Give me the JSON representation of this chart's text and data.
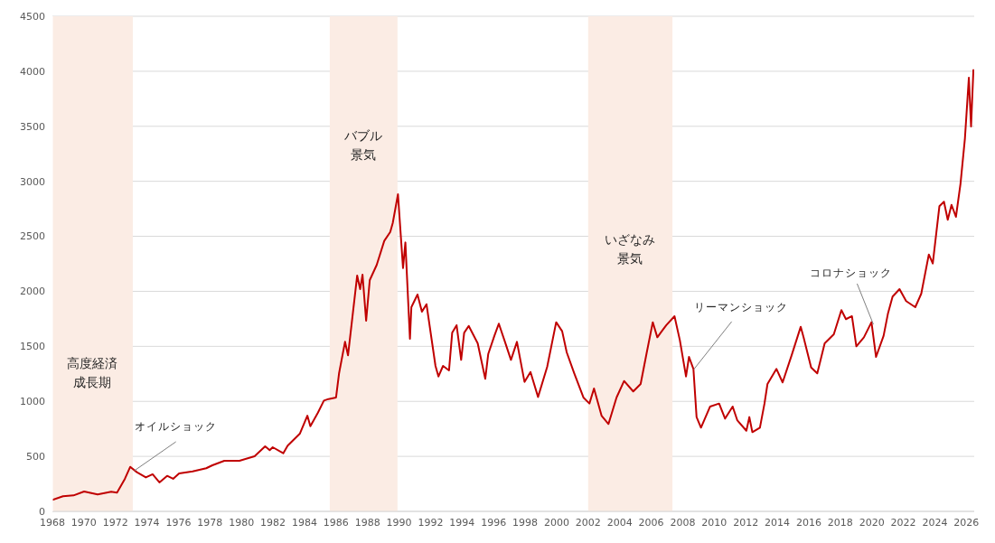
{
  "chart_data": {
    "type": "line",
    "x": [
      1968.0,
      1968.67,
      1969.34,
      1970.01,
      1970.87,
      1971.73,
      1972.1,
      1972.6,
      1972.94,
      1973.36,
      1973.93,
      1974.36,
      1974.79,
      1975.28,
      1975.66,
      1976.04,
      1976.9,
      1977.76,
      1978.15,
      1978.91,
      1979.87,
      1980.83,
      1981.5,
      1981.79,
      1981.98,
      1982.65,
      1982.93,
      1983.7,
      1984.18,
      1984.37,
      1984.85,
      1985.23,
      1985.52,
      1986.0,
      1986.19,
      1986.57,
      1986.76,
      1987.34,
      1987.53,
      1987.68,
      1987.91,
      1988.14,
      1988.58,
      1989.06,
      1989.44,
      1989.6,
      1989.93,
      1990.25,
      1990.4,
      1990.69,
      1990.78,
      1991.17,
      1991.45,
      1991.74,
      1992.31,
      1992.5,
      1992.79,
      1993.17,
      1993.37,
      1993.65,
      1993.94,
      1994.13,
      1994.42,
      1994.99,
      1995.47,
      1995.66,
      1996.05,
      1996.33,
      1996.72,
      1997.1,
      1997.48,
      1997.96,
      1998.34,
      1998.82,
      1999.4,
      1999.97,
      2000.35,
      2000.64,
      2001.12,
      2001.7,
      2002.08,
      2002.37,
      2002.85,
      2003.29,
      2003.8,
      2004.28,
      2004.86,
      2005.33,
      2005.72,
      2006.1,
      2006.39,
      2006.67,
      2006.96,
      2007.48,
      2007.82,
      2008.21,
      2008.4,
      2008.68,
      2008.88,
      2009.16,
      2009.74,
      2010.31,
      2010.69,
      2011.17,
      2011.46,
      2012.04,
      2012.23,
      2012.42,
      2012.9,
      2013.19,
      2013.38,
      2013.95,
      2014.34,
      2014.91,
      2015.49,
      2015.67,
      2016.15,
      2016.54,
      2017.01,
      2017.59,
      2018.07,
      2018.36,
      2018.74,
      2019.02,
      2019.5,
      2019.98,
      2020.27,
      2020.75,
      2021.03,
      2021.32,
      2021.76,
      2022.18,
      2022.76,
      2023.14,
      2023.62,
      2023.87,
      2024.29,
      2024.58,
      2024.82,
      2025.06,
      2025.34,
      2025.63,
      2025.91,
      2026.16,
      2026.3,
      2026.45
    ],
    "series": [
      {
        "color": "#c00000",
        "values": [
          104,
          137,
          145,
          181,
          154,
          178,
          170,
          296,
          405,
          356,
          309,
          337,
          263,
          323,
          296,
          345,
          364,
          392,
          419,
          460,
          460,
          501,
          591,
          556,
          583,
          528,
          597,
          706,
          870,
          774,
          897,
          1007,
          1021,
          1035,
          1254,
          1541,
          1418,
          2143,
          2020,
          2151,
          1733,
          2102,
          2240,
          2458,
          2540,
          2622,
          2882,
          2211,
          2444,
          1568,
          1856,
          1971,
          1815,
          1883,
          1322,
          1226,
          1322,
          1281,
          1623,
          1692,
          1377,
          1623,
          1686,
          1527,
          1205,
          1431,
          1596,
          1706,
          1541,
          1377,
          1541,
          1177,
          1267,
          1040,
          1314,
          1719,
          1637,
          1445,
          1254,
          1035,
          980,
          1117,
          870,
          794,
          1035,
          1185,
          1090,
          1158,
          1445,
          1719,
          1582,
          1637,
          1692,
          1774,
          1555,
          1226,
          1404,
          1295,
          857,
          761,
          953,
          980,
          843,
          953,
          829,
          733,
          857,
          720,
          761,
          980,
          1158,
          1295,
          1172,
          1418,
          1678,
          1582,
          1308,
          1254,
          1527,
          1610,
          1829,
          1747,
          1774,
          1500,
          1582,
          1719,
          1404,
          1596,
          1801,
          1952,
          2020,
          1911,
          1856,
          1979,
          2335,
          2253,
          2773,
          2814,
          2650,
          2786,
          2677,
          2978,
          3389,
          3941,
          3498,
          4018
        ]
      }
    ],
    "xlim": [
      1968,
      2026.5
    ],
    "xticks": [
      1968,
      1970,
      1972,
      1974,
      1976,
      1978,
      1980,
      1982,
      1984,
      1986,
      1988,
      1990,
      1992,
      1994,
      1996,
      1998,
      2000,
      2002,
      2004,
      2006,
      2008,
      2010,
      2012,
      2014,
      2016,
      2018,
      2020,
      2022,
      2024,
      2026
    ],
    "ylim": [
      0,
      4500
    ],
    "yticks": [
      0,
      500,
      1000,
      1500,
      2000,
      2500,
      3000,
      3500,
      4000,
      4500
    ],
    "grid": "y",
    "marker": "none",
    "bands": [
      {
        "axis": "x",
        "from": 1968,
        "to": 1973.1,
        "label": "高度経済成長期",
        "color": "#fbece4"
      },
      {
        "axis": "x",
        "from": 1985.6,
        "to": 1989.9,
        "label": "バブル景気",
        "color": "#fbece4"
      },
      {
        "axis": "x",
        "from": 2002.0,
        "to": 2007.35,
        "label": "いざなみ景気",
        "color": "#fbece4"
      }
    ],
    "annotations": [
      {
        "text": "オイルショック",
        "x": 1973.2,
        "y": 370
      },
      {
        "text": "リーマンショック",
        "x": 2008.7,
        "y": 1290
      },
      {
        "text": "コロナショック",
        "x": 2020.1,
        "y": 1700
      }
    ]
  }
}
